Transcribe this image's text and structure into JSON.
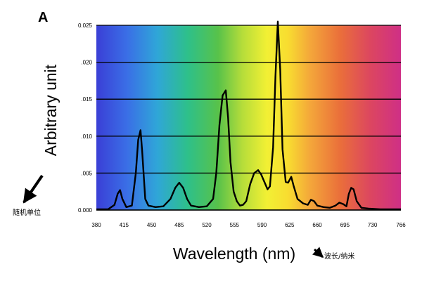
{
  "panel_label": "A",
  "annotations": {
    "ylabel_cn": "随机单位",
    "xlabel_cn": "波长/纳米"
  },
  "chart_data": {
    "type": "line",
    "xlabel": "Wavelength (nm)",
    "ylabel": "Arbitrary unit",
    "xlim": [
      380,
      766
    ],
    "ylim": [
      0,
      0.025
    ],
    "xticks": [
      380,
      415,
      450,
      485,
      520,
      555,
      590,
      625,
      660,
      695,
      730,
      766
    ],
    "xtick_labels": [
      "380",
      "415",
      "450",
      "485",
      "520",
      "555",
      "590",
      "625",
      "660",
      "695",
      "730",
      "766"
    ],
    "yticks": [
      0,
      0.005,
      0.01,
      0.015,
      0.02,
      0.025
    ],
    "ytick_labels": [
      "0.000",
      ".005",
      ".010",
      ".015",
      ".020",
      "0.025"
    ],
    "grid": "horizontal",
    "background": "visible spectrum gradient",
    "series": [
      {
        "color": "#000000",
        "x": [
          380,
          395,
          403,
          407,
          410,
          413,
          418,
          425,
          430,
          433,
          436,
          438,
          442,
          446,
          455,
          465,
          474,
          480,
          485,
          490,
          495,
          500,
          510,
          520,
          528,
          532,
          536,
          540,
          544,
          547,
          550,
          554,
          558,
          562,
          566,
          570,
          575,
          580,
          585,
          589,
          593,
          597,
          600,
          604,
          607,
          610,
          613,
          616,
          620,
          623,
          627,
          630,
          635,
          642,
          648,
          652,
          656,
          660,
          668,
          676,
          683,
          688,
          693,
          697,
          700,
          703,
          706,
          710,
          716,
          725,
          740,
          755,
          766
        ],
        "y": [
          0.0001,
          0.0001,
          0.0007,
          0.0022,
          0.0027,
          0.0015,
          0.0004,
          0.0006,
          0.005,
          0.0095,
          0.0108,
          0.008,
          0.0015,
          0.0006,
          0.0004,
          0.0005,
          0.0015,
          0.003,
          0.0037,
          0.003,
          0.0015,
          0.0006,
          0.0004,
          0.0005,
          0.0015,
          0.005,
          0.0115,
          0.0155,
          0.0162,
          0.0125,
          0.0065,
          0.0025,
          0.0012,
          0.0006,
          0.0007,
          0.0012,
          0.0035,
          0.005,
          0.0054,
          0.0048,
          0.0038,
          0.0028,
          0.0032,
          0.0085,
          0.018,
          0.0255,
          0.019,
          0.0082,
          0.0038,
          0.0037,
          0.0045,
          0.0033,
          0.0015,
          0.0009,
          0.0007,
          0.0014,
          0.0012,
          0.0006,
          0.0004,
          0.0003,
          0.0006,
          0.001,
          0.0008,
          0.0005,
          0.0022,
          0.003,
          0.0028,
          0.0012,
          0.0003,
          0.0002,
          0.0001,
          0.0001,
          0.0001
        ]
      }
    ]
  }
}
